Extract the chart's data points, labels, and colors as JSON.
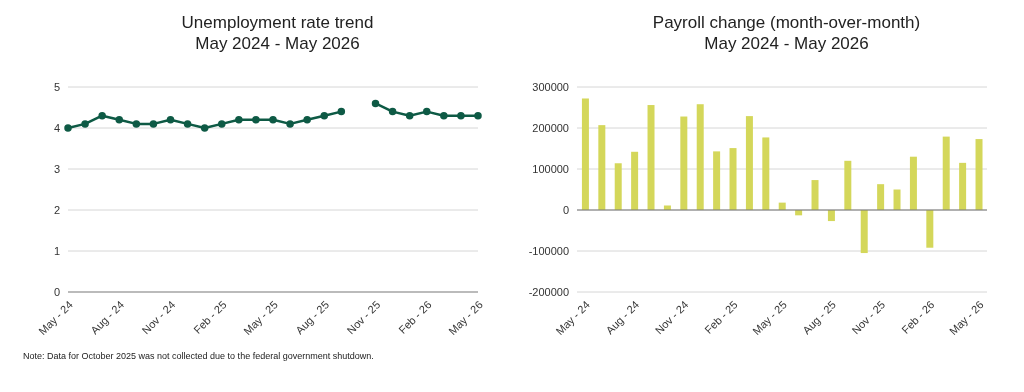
{
  "chart_data": [
    {
      "type": "line",
      "title": "Unemployment rate trend",
      "subtitle": "May 2024 - May 2026",
      "categories": [
        "May - 24",
        null,
        null,
        "Aug - 24",
        null,
        null,
        "Nov - 24",
        null,
        null,
        "Feb - 25",
        null,
        null,
        "May - 25",
        null,
        null,
        "Aug - 25",
        null,
        null,
        "Nov - 25",
        null,
        null,
        "Feb - 26",
        null,
        null,
        "May - 26"
      ],
      "series": [
        {
          "color": "#0e5a45",
          "values": [
            4.0,
            4.1,
            4.3,
            4.2,
            4.1,
            4.1,
            4.2,
            4.1,
            4.0,
            4.1,
            4.2,
            4.2,
            4.2,
            4.1,
            4.2,
            4.3,
            4.4,
            null,
            4.6,
            4.4,
            4.3,
            4.4,
            4.3,
            4.3,
            4.3
          ]
        }
      ],
      "ylim": [
        0,
        5
      ],
      "yticks": [
        0,
        1,
        2,
        3,
        4,
        5
      ],
      "grid": "y",
      "legend": false,
      "marker": "circle",
      "line_style": "solid",
      "annotations": [
        "Note: Data for October 2025 was not collected due to the federal government shutdown."
      ]
    },
    {
      "type": "bar",
      "title": "Payroll change (month-over-month)",
      "subtitle": "May 2024 - May 2026",
      "categories": [
        "May - 24",
        null,
        null,
        "Aug - 24",
        null,
        null,
        "Nov - 24",
        null,
        null,
        "Feb - 25",
        null,
        null,
        "May - 25",
        null,
        null,
        "Aug - 25",
        null,
        null,
        "Nov - 25",
        null,
        null,
        "Feb - 26",
        null,
        null,
        "May - 26"
      ],
      "series": [
        {
          "color": "#d4d75a",
          "values": [
            272000,
            207000,
            114000,
            142000,
            256000,
            11000,
            228000,
            258000,
            143000,
            151000,
            229000,
            177000,
            18000,
            -13000,
            73000,
            -27000,
            120000,
            -105000,
            63000,
            50000,
            130000,
            -92000,
            179000,
            115000,
            173000
          ]
        }
      ],
      "ylim": [
        -200000,
        300000
      ],
      "yticks": [
        -200000,
        -100000,
        0,
        100000,
        200000,
        300000
      ],
      "grid": "y",
      "legend": false
    }
  ]
}
